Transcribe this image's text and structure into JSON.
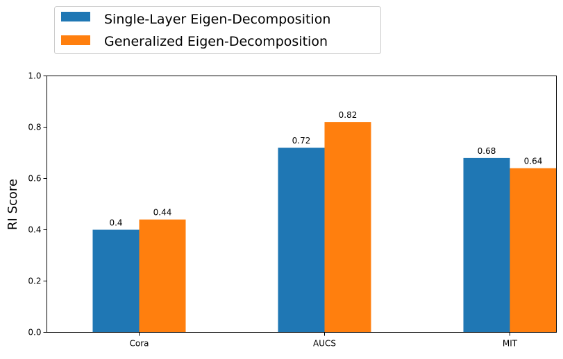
{
  "chart_data": {
    "type": "bar",
    "title": "",
    "xlabel": "",
    "ylabel": "RI Score",
    "ylim": [
      0,
      1.0
    ],
    "yticks": [
      "0.0",
      "0.2",
      "0.4",
      "0.6",
      "0.8",
      "1.0"
    ],
    "categories": [
      "Cora",
      "AUCS",
      "MIT"
    ],
    "series": [
      {
        "name": "Single-Layer Eigen-Decomposition",
        "color": "#1f77b4",
        "values": [
          0.4,
          0.72,
          0.68
        ],
        "labels": [
          "0.4",
          "0.72",
          "0.68"
        ]
      },
      {
        "name": "Generalized Eigen-Decomposition",
        "color": "#ff7f0e",
        "values": [
          0.44,
          0.82,
          0.64
        ],
        "labels": [
          "0.44",
          "0.82",
          "0.64"
        ]
      }
    ],
    "grid": false,
    "legend_position": "top-left, above plot"
  }
}
